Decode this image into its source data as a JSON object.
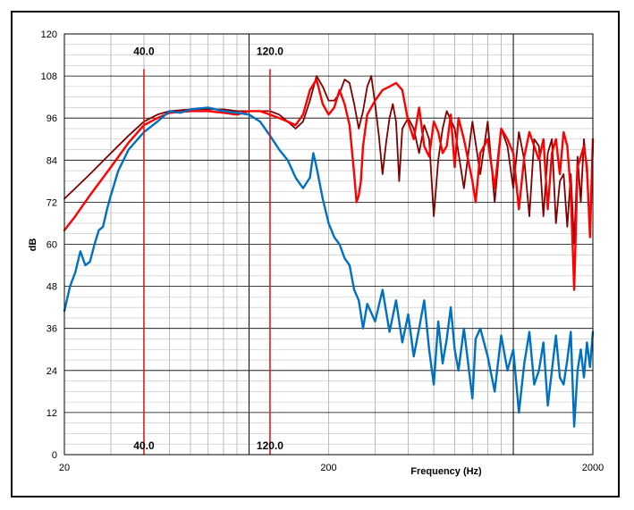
{
  "chart_data": {
    "type": "line",
    "title": "",
    "xlabel": "Frequency (Hz)",
    "ylabel": "dB",
    "x_scale": "log",
    "xlim": [
      20,
      2000
    ],
    "ylim": [
      0,
      120
    ],
    "x_tick_labels": [
      {
        "value": 20,
        "label": "20"
      },
      {
        "value": 200,
        "label": "200"
      },
      {
        "value": 2000,
        "label": "2000"
      }
    ],
    "y_ticks": [
      0,
      12,
      24,
      36,
      48,
      60,
      72,
      84,
      96,
      108,
      120
    ],
    "grid": true,
    "legend": "none",
    "markers": [
      {
        "x": 40,
        "label_top": "40.0",
        "label_bottom": "40.0",
        "color": "#e31a1c"
      },
      {
        "x": 120,
        "label_top": "120.0",
        "label_bottom": "120.0",
        "color": "#e31a1c"
      }
    ],
    "series": [
      {
        "color": "#7f0000",
        "points": [
          [
            20,
            73
          ],
          [
            25,
            80
          ],
          [
            30,
            86
          ],
          [
            35,
            91
          ],
          [
            40,
            95
          ],
          [
            45,
            97
          ],
          [
            50,
            98
          ],
          [
            60,
            98.5
          ],
          [
            70,
            98.5
          ],
          [
            80,
            98.5
          ],
          [
            90,
            98
          ],
          [
            100,
            98
          ],
          [
            110,
            98
          ],
          [
            120,
            98
          ],
          [
            130,
            97
          ],
          [
            140,
            95
          ],
          [
            150,
            93
          ],
          [
            160,
            95
          ],
          [
            170,
            101
          ],
          [
            180,
            108
          ],
          [
            190,
            105
          ],
          [
            200,
            101
          ],
          [
            210,
            101
          ],
          [
            220,
            103
          ],
          [
            230,
            107
          ],
          [
            240,
            106
          ],
          [
            250,
            100
          ],
          [
            260,
            93
          ],
          [
            270,
            98
          ],
          [
            280,
            105
          ],
          [
            290,
            108
          ],
          [
            300,
            100
          ],
          [
            310,
            91
          ],
          [
            320,
            80
          ],
          [
            330,
            89
          ],
          [
            340,
            96
          ],
          [
            350,
            100
          ],
          [
            360,
            95
          ],
          [
            370,
            78
          ],
          [
            380,
            93
          ],
          [
            400,
            96
          ],
          [
            420,
            93
          ],
          [
            440,
            86
          ],
          [
            460,
            94
          ],
          [
            480,
            90
          ],
          [
            500,
            68
          ],
          [
            520,
            84
          ],
          [
            540,
            93
          ],
          [
            560,
            98
          ],
          [
            600,
            93
          ],
          [
            650,
            76
          ],
          [
            700,
            95
          ],
          [
            750,
            80
          ],
          [
            800,
            95
          ],
          [
            850,
            72
          ],
          [
            900,
            93
          ],
          [
            950,
            88
          ],
          [
            1000,
            76
          ],
          [
            1050,
            92
          ],
          [
            1100,
            84
          ],
          [
            1150,
            68
          ],
          [
            1200,
            90
          ],
          [
            1250,
            88
          ],
          [
            1300,
            68
          ],
          [
            1350,
            86
          ],
          [
            1400,
            90
          ],
          [
            1450,
            66
          ],
          [
            1500,
            78
          ],
          [
            1550,
            80
          ],
          [
            1600,
            65
          ],
          [
            1650,
            80
          ],
          [
            1700,
            60
          ],
          [
            1750,
            85
          ],
          [
            1800,
            72
          ],
          [
            1850,
            90
          ],
          [
            1900,
            80
          ],
          [
            1950,
            64
          ],
          [
            2000,
            88
          ]
        ]
      },
      {
        "color": "#ff0000",
        "points": [
          [
            20,
            64
          ],
          [
            22,
            68
          ],
          [
            25,
            74
          ],
          [
            30,
            82
          ],
          [
            35,
            89
          ],
          [
            40,
            94
          ],
          [
            45,
            96
          ],
          [
            50,
            97.5
          ],
          [
            60,
            98
          ],
          [
            70,
            98
          ],
          [
            80,
            97.5
          ],
          [
            90,
            97
          ],
          [
            100,
            98
          ],
          [
            110,
            98
          ],
          [
            120,
            97
          ],
          [
            130,
            96
          ],
          [
            140,
            95
          ],
          [
            150,
            94
          ],
          [
            160,
            97
          ],
          [
            170,
            104
          ],
          [
            180,
            107
          ],
          [
            190,
            100
          ],
          [
            200,
            97
          ],
          [
            210,
            99
          ],
          [
            220,
            104
          ],
          [
            230,
            100
          ],
          [
            240,
            94
          ],
          [
            250,
            80
          ],
          [
            255,
            72
          ],
          [
            260,
            74
          ],
          [
            265,
            78
          ],
          [
            270,
            88
          ],
          [
            280,
            97
          ],
          [
            300,
            101
          ],
          [
            320,
            104
          ],
          [
            340,
            105
          ],
          [
            360,
            106
          ],
          [
            380,
            104
          ],
          [
            400,
            95
          ],
          [
            420,
            90
          ],
          [
            440,
            99
          ],
          [
            460,
            88
          ],
          [
            480,
            85
          ],
          [
            500,
            95
          ],
          [
            520,
            92
          ],
          [
            540,
            86
          ],
          [
            560,
            88
          ],
          [
            580,
            97
          ],
          [
            600,
            82
          ],
          [
            620,
            96
          ],
          [
            650,
            90
          ],
          [
            700,
            78
          ],
          [
            720,
            72
          ],
          [
            750,
            86
          ],
          [
            800,
            90
          ],
          [
            850,
            76
          ],
          [
            900,
            93
          ],
          [
            950,
            90
          ],
          [
            1000,
            86
          ],
          [
            1050,
            70
          ],
          [
            1100,
            85
          ],
          [
            1150,
            92
          ],
          [
            1200,
            88
          ],
          [
            1250,
            84
          ],
          [
            1300,
            90
          ],
          [
            1350,
            70
          ],
          [
            1400,
            86
          ],
          [
            1450,
            90
          ],
          [
            1500,
            80
          ],
          [
            1550,
            92
          ],
          [
            1600,
            88
          ],
          [
            1650,
            75
          ],
          [
            1700,
            47
          ],
          [
            1750,
            82
          ],
          [
            1800,
            85
          ],
          [
            1850,
            88
          ],
          [
            1900,
            82
          ],
          [
            1950,
            62
          ],
          [
            2000,
            90
          ]
        ]
      },
      {
        "color": "#0070c0",
        "points": [
          [
            20,
            41
          ],
          [
            21,
            48
          ],
          [
            22,
            52
          ],
          [
            23,
            58
          ],
          [
            24,
            54
          ],
          [
            25,
            55
          ],
          [
            26,
            60
          ],
          [
            27,
            64
          ],
          [
            28,
            65
          ],
          [
            29,
            70
          ],
          [
            30,
            74
          ],
          [
            32,
            81
          ],
          [
            35,
            87
          ],
          [
            40,
            92
          ],
          [
            45,
            95
          ],
          [
            50,
            98
          ],
          [
            55,
            97.5
          ],
          [
            60,
            98.5
          ],
          [
            70,
            99
          ],
          [
            80,
            98
          ],
          [
            90,
            97.5
          ],
          [
            100,
            97
          ],
          [
            110,
            95
          ],
          [
            120,
            91
          ],
          [
            130,
            87
          ],
          [
            140,
            84
          ],
          [
            150,
            79
          ],
          [
            160,
            76
          ],
          [
            170,
            79
          ],
          [
            175,
            86
          ],
          [
            180,
            82
          ],
          [
            190,
            73
          ],
          [
            200,
            66
          ],
          [
            210,
            62
          ],
          [
            220,
            60
          ],
          [
            230,
            56
          ],
          [
            240,
            54
          ],
          [
            250,
            47
          ],
          [
            260,
            44
          ],
          [
            270,
            36
          ],
          [
            280,
            43
          ],
          [
            300,
            38
          ],
          [
            320,
            47
          ],
          [
            340,
            35
          ],
          [
            360,
            44
          ],
          [
            380,
            32
          ],
          [
            400,
            40
          ],
          [
            420,
            28
          ],
          [
            440,
            36
          ],
          [
            460,
            44
          ],
          [
            480,
            30
          ],
          [
            500,
            20
          ],
          [
            520,
            38
          ],
          [
            540,
            26
          ],
          [
            560,
            33
          ],
          [
            580,
            42
          ],
          [
            600,
            30
          ],
          [
            620,
            24
          ],
          [
            650,
            36
          ],
          [
            700,
            16
          ],
          [
            720,
            33
          ],
          [
            750,
            36
          ],
          [
            800,
            28
          ],
          [
            850,
            18
          ],
          [
            900,
            34
          ],
          [
            950,
            24
          ],
          [
            1000,
            30
          ],
          [
            1050,
            12
          ],
          [
            1100,
            26
          ],
          [
            1150,
            35
          ],
          [
            1200,
            20
          ],
          [
            1250,
            24
          ],
          [
            1300,
            32
          ],
          [
            1350,
            14
          ],
          [
            1400,
            24
          ],
          [
            1450,
            34
          ],
          [
            1500,
            22
          ],
          [
            1550,
            20
          ],
          [
            1600,
            27
          ],
          [
            1650,
            35
          ],
          [
            1700,
            8
          ],
          [
            1750,
            24
          ],
          [
            1800,
            30
          ],
          [
            1850,
            22
          ],
          [
            1900,
            32
          ],
          [
            1950,
            25
          ],
          [
            2000,
            35
          ]
        ]
      }
    ]
  }
}
